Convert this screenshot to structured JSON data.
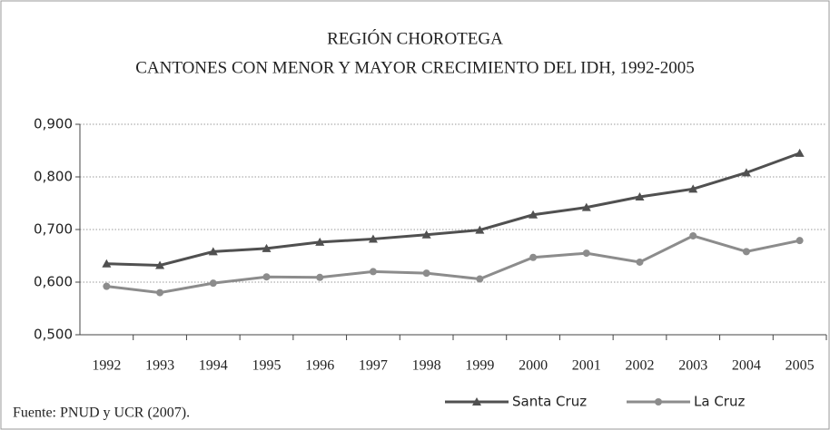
{
  "chart_data": {
    "type": "line",
    "title": "REGIÓN CHOROTEGA",
    "subtitle": "CANTONES CON MENOR Y MAYOR CRECIMIENTO DEL IDH, 1992-2005",
    "categories": [
      "1992",
      "1993",
      "1994",
      "1995",
      "1996",
      "1997",
      "1998",
      "1999",
      "2000",
      "2001",
      "2002",
      "2003",
      "2004",
      "2005"
    ],
    "series": [
      {
        "name": "Santa Cruz",
        "color": "#505050",
        "marker": "triangle",
        "values": [
          0.635,
          0.632,
          0.658,
          0.664,
          0.676,
          0.682,
          0.69,
          0.699,
          0.728,
          0.742,
          0.762,
          0.777,
          0.808,
          0.845
        ]
      },
      {
        "name": "La Cruz",
        "color": "#8c8c8c",
        "marker": "circle",
        "values": [
          0.592,
          0.58,
          0.598,
          0.61,
          0.609,
          0.62,
          0.617,
          0.606,
          0.647,
          0.655,
          0.638,
          0.688,
          0.658,
          0.679
        ]
      }
    ],
    "ylim": [
      0.5,
      0.9
    ],
    "yticks": [
      {
        "value": 0.5,
        "label": "0,500"
      },
      {
        "value": 0.6,
        "label": "0,600"
      },
      {
        "value": 0.7,
        "label": "0,700"
      },
      {
        "value": 0.8,
        "label": "0,800"
      },
      {
        "value": 0.9,
        "label": "0,900"
      }
    ],
    "grid": true,
    "legend": "bottom",
    "source": "Fuente: PNUD y UCR (2007)."
  }
}
